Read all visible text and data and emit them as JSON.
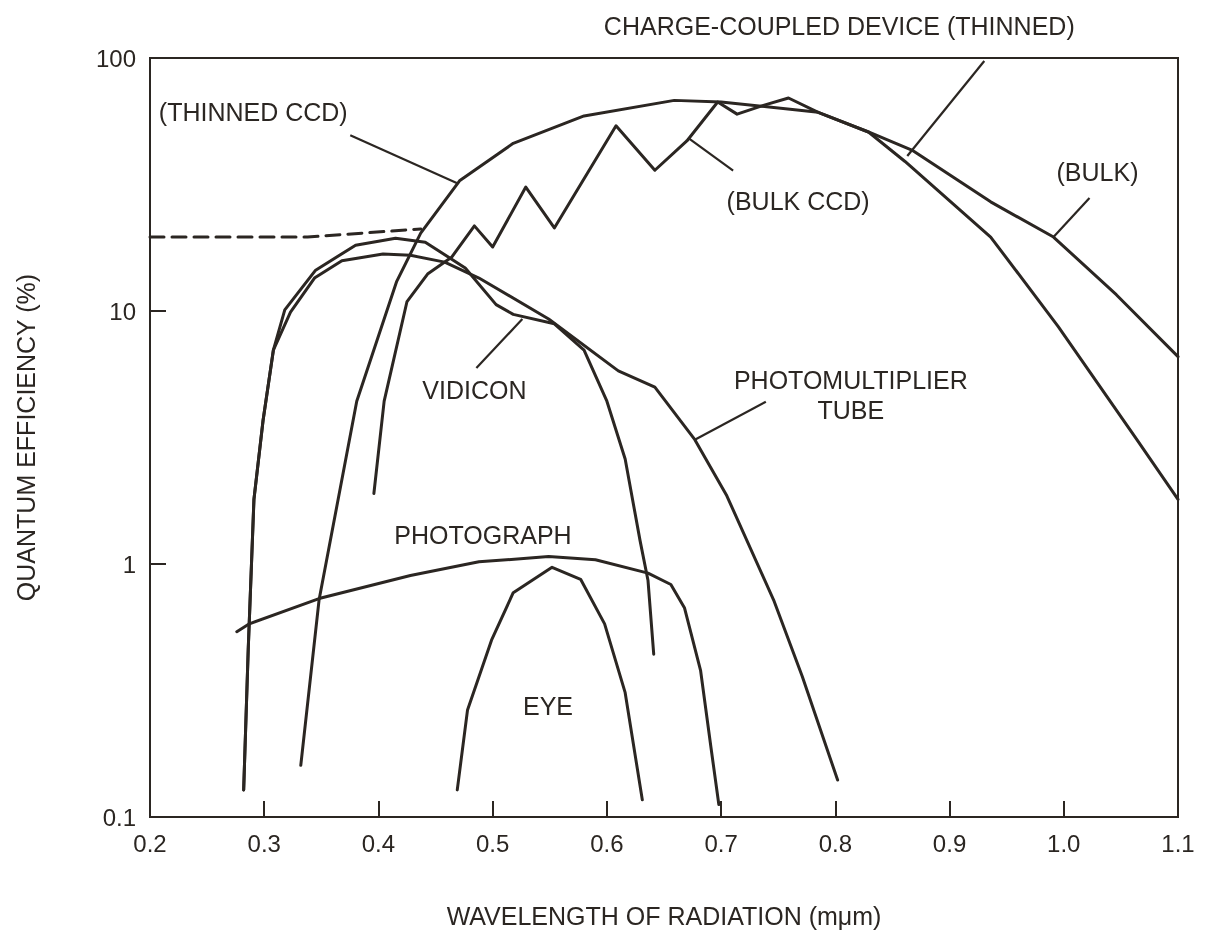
{
  "chart_data": {
    "type": "line",
    "xlabel": "WAVELENGTH OF RADIATION (mμm)",
    "ylabel": "QUANTUM EFFICIENCY (%)",
    "log": "y",
    "xlim": [
      0.2,
      1.1
    ],
    "xticks": [
      0.2,
      0.3,
      0.4,
      0.5,
      0.6,
      0.7,
      0.8,
      0.9,
      {
        "value": 1,
        "label": "1.0"
      },
      1.1
    ],
    "ylim": [
      0.1,
      100
    ],
    "yticks": [
      0.1,
      1,
      10,
      100
    ],
    "marker": "none",
    "line_style": "solid",
    "series": [
      {
        "color": "#2b2622",
        "x": [
          0.332,
          0.348,
          0.381,
          0.416,
          0.437,
          0.471,
          0.518,
          0.58,
          0.659,
          0.7,
          0.785,
          0.829,
          0.861,
          0.936,
          0.995,
          1.064,
          1.1
        ],
        "values": [
          0.16,
          0.72,
          4.4,
          13.1,
          20.3,
          32.7,
          46,
          59,
          68,
          67,
          61,
          51,
          39,
          19.6,
          8.7,
          3.1,
          1.8
        ]
      },
      {
        "color": "#2b2622",
        "x": [
          0.396,
          0.405,
          0.425,
          0.443,
          0.464,
          0.484,
          0.5,
          0.529,
          0.554,
          0.608,
          0.642,
          0.67,
          0.697,
          0.714,
          0.737,
          0.759,
          0.785,
          0.829,
          0.868,
          0.936,
          0.991,
          1.046,
          1.1
        ],
        "values": [
          1.9,
          4.4,
          10.9,
          14,
          16.3,
          21.7,
          17.9,
          30.9,
          21.3,
          54,
          36,
          47,
          67,
          60,
          65,
          69.5,
          61,
          51,
          43,
          27,
          19.6,
          11.6,
          6.6
        ]
      },
      {
        "color": "#2b2622",
        "line_style": "dashed",
        "x": [
          0.2,
          0.338,
          0.437
        ],
        "values": [
          19.6,
          19.6,
          21.1
        ]
      },
      {
        "color": "#2b2622",
        "x": [
          0.282,
          0.286,
          0.291,
          0.299,
          0.308,
          0.318,
          0.345,
          0.38,
          0.415,
          0.441,
          0.476,
          0.503,
          0.518,
          0.554,
          0.58,
          0.6,
          0.616,
          0.629,
          0.636,
          0.641
        ],
        "values": [
          0.128,
          0.46,
          1.8,
          3.7,
          7.0,
          10.1,
          14.5,
          18.2,
          19.4,
          18.7,
          14.8,
          10.6,
          9.7,
          8.9,
          7.0,
          4.4,
          2.6,
          1.24,
          0.86,
          0.44
        ]
      },
      {
        "color": "#2b2622",
        "x": [
          0.282,
          0.286,
          0.291,
          0.299,
          0.308,
          0.323,
          0.344,
          0.368,
          0.404,
          0.428,
          0.458,
          0.488,
          0.549,
          0.61,
          0.642,
          0.677,
          0.705,
          0.746,
          0.771,
          0.802
        ],
        "values": [
          0.128,
          0.46,
          1.8,
          3.7,
          7.0,
          9.9,
          13.5,
          15.8,
          16.8,
          16.6,
          15.6,
          13.5,
          9.3,
          5.8,
          5.0,
          3.1,
          1.86,
          0.72,
          0.36,
          0.14
        ]
      },
      {
        "color": "#2b2622",
        "x": [
          0.276,
          0.287,
          0.348,
          0.428,
          0.488,
          0.549,
          0.59,
          0.636,
          0.656,
          0.668,
          0.682,
          0.691,
          0.698
        ],
        "values": [
          0.54,
          0.58,
          0.73,
          0.9,
          1.02,
          1.07,
          1.04,
          0.92,
          0.83,
          0.67,
          0.38,
          0.19,
          0.112
        ]
      },
      {
        "color": "#2b2622",
        "x": [
          0.469,
          0.478,
          0.499,
          0.518,
          0.552,
          0.577,
          0.598,
          0.616,
          0.631
        ],
        "values": [
          0.128,
          0.265,
          0.5,
          0.77,
          0.97,
          0.87,
          0.58,
          0.31,
          0.117
        ]
      }
    ],
    "annotations": [
      {
        "text": "CHARGE-COUPLED DEVICE (THINNED)",
        "x": 0.863,
        "y": 41
      },
      {
        "text": "(THINNED CCD)",
        "x": 0.469,
        "y": 32
      },
      {
        "text": "(BULK CCD)",
        "x": 0.672,
        "y": 48
      },
      {
        "text": "(BULK)",
        "x": 0.991,
        "y": 19.6
      },
      {
        "text": "VIDICON",
        "x": 0.526,
        "y": 9.3
      },
      {
        "text": "PHOTOMULTIPLIER TUBE",
        "x": 0.677,
        "y": 3.1
      },
      "PHOTOGRAPH",
      "EYE"
    ]
  }
}
